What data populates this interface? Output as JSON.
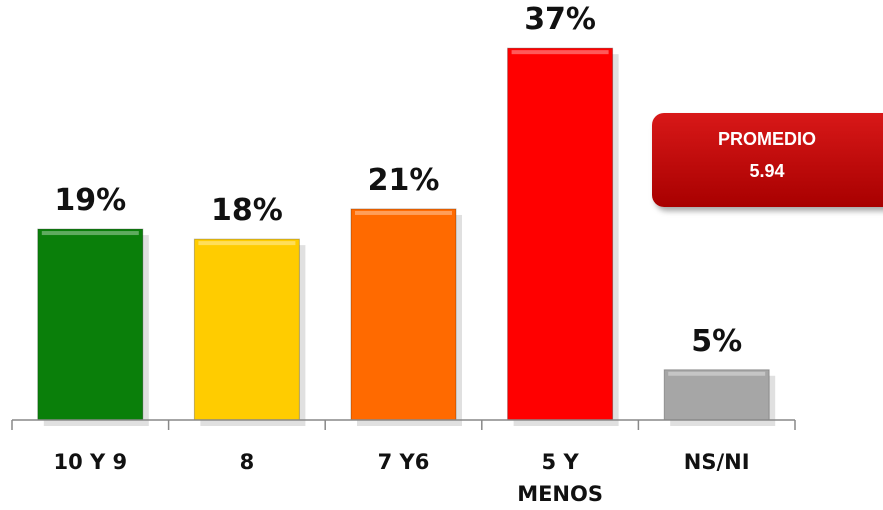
{
  "chart_data": {
    "type": "bar",
    "categories": [
      "10 Y 9",
      "8",
      "7 Y6",
      "5 Y MENOS",
      "NS/NI"
    ],
    "values": [
      19,
      18,
      21,
      37,
      5
    ],
    "value_labels": [
      "19%",
      "18%",
      "21%",
      "37%",
      "5%"
    ],
    "colors": [
      "#0a7f0a",
      "#ffcc00",
      "#ff6a00",
      "#ff0000",
      "#a6a6a6"
    ],
    "ylim": [
      0,
      40
    ],
    "annotation": {
      "label": "PROMEDIO",
      "value": 5.94
    }
  }
}
